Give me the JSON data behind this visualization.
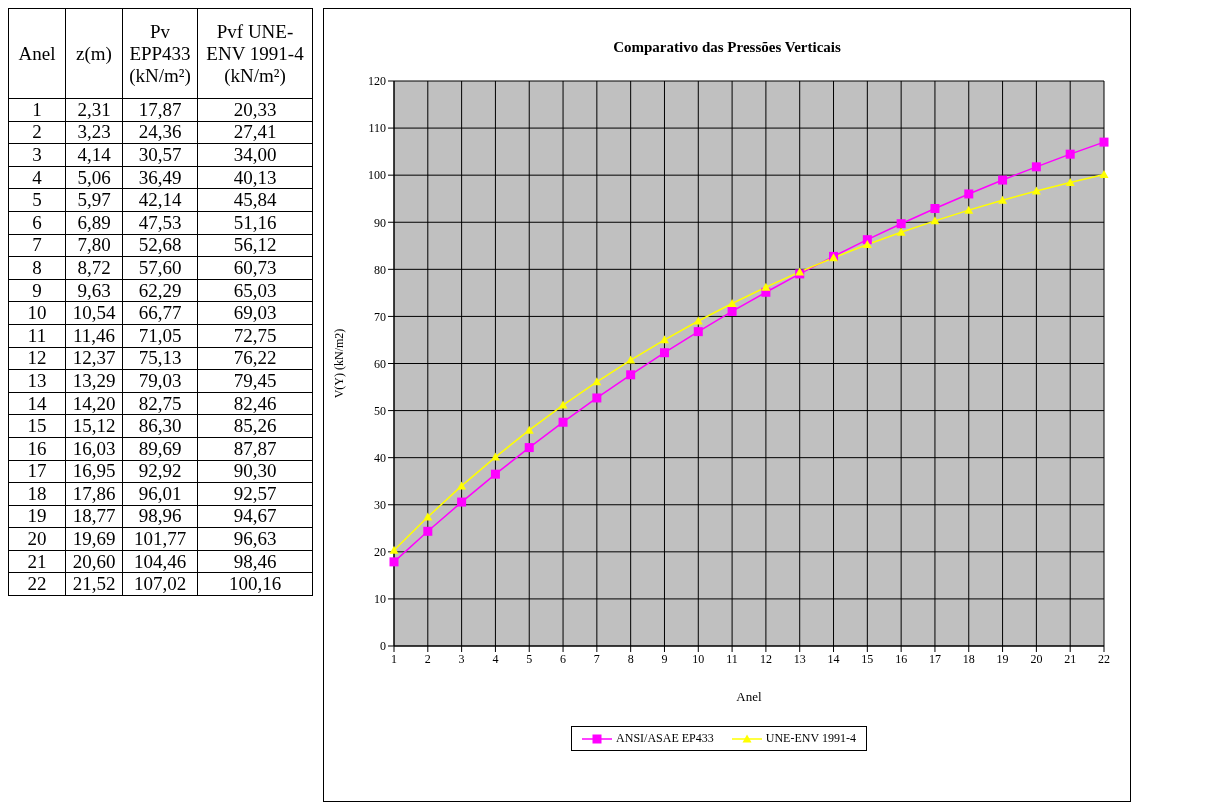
{
  "chart_data": {
    "type": "line",
    "title": "Comparativo das Pressões Verticais",
    "xlabel": "Anel",
    "ylabel": "V(Y) (kN/m2)",
    "categories": [
      "1",
      "2",
      "3",
      "4",
      "5",
      "6",
      "7",
      "8",
      "9",
      "10",
      "11",
      "12",
      "13",
      "14",
      "15",
      "16",
      "17",
      "18",
      "19",
      "20",
      "21",
      "22"
    ],
    "ylim": [
      0,
      120
    ],
    "yticks": [
      0,
      10,
      20,
      30,
      40,
      50,
      60,
      70,
      80,
      90,
      100,
      110,
      120
    ],
    "grid": true,
    "legend": "bottom",
    "annotations": [
      "z(m)",
      "Pv EPP433 (kN/m²)",
      "Pvf UNE-ENV 1991-4 (kN/m²)",
      "2,31",
      "17,87",
      "20,33",
      "3,23",
      "24,36",
      "27,41",
      "4,14",
      "30,57",
      "34,00",
      "5,06",
      "36,49",
      "40,13",
      "5,97",
      "42,14",
      "45,84",
      "6,89",
      "47,53",
      "51,16",
      "7,80",
      "52,68",
      "56,12",
      "8,72",
      "57,60",
      "60,73",
      "9,63",
      "62,29",
      "65,03",
      "10,54",
      "66,77",
      "69,03",
      "11,46",
      "71,05",
      "72,75",
      "12,37",
      "75,13",
      "76,22",
      "13,29",
      "79,03",
      "79,45",
      "14,20",
      "82,75",
      "82,46",
      "15,12",
      "86,30",
      "85,26",
      "16,03",
      "89,69",
      "87,87",
      "16,95",
      "92,92",
      "90,30",
      "17,86",
      "96,01",
      "92,57",
      "18,77",
      "98,96",
      "94,67",
      "19,69",
      "101,77",
      "96,63",
      "20,60",
      "104,46",
      "98,46",
      "21,52",
      "107,02",
      "100,16"
    ],
    "series": [
      {
        "name": "ANSI/ASAE EP433",
        "color": "#ff00ff",
        "marker": "square",
        "values": [
          17.87,
          24.36,
          30.57,
          36.49,
          42.14,
          47.53,
          52.68,
          57.6,
          62.29,
          66.77,
          71.05,
          75.13,
          79.03,
          82.75,
          86.3,
          89.69,
          92.92,
          96.01,
          98.96,
          101.77,
          104.46,
          107.02
        ]
      },
      {
        "name": "UNE-ENV 1991-4",
        "color": "#ffff00",
        "marker": "triangle",
        "values": [
          20.33,
          27.41,
          34.0,
          40.13,
          45.84,
          51.16,
          56.12,
          60.73,
          65.03,
          69.03,
          72.75,
          76.22,
          79.45,
          82.46,
          85.26,
          87.87,
          90.3,
          92.57,
          94.67,
          96.63,
          98.46,
          100.16
        ]
      }
    ]
  }
}
